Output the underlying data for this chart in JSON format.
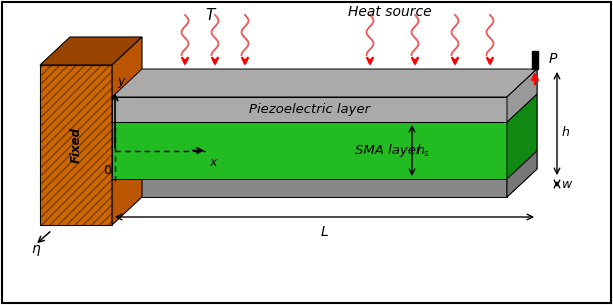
{
  "background_color": "#ffffff",
  "beam_color_gray": "#888888",
  "beam_color_gray_top": "#aaaaaa",
  "beam_color_gray_right": "#777777",
  "beam_bottom_gray": "#999999",
  "sma_color_front": "#22bb22",
  "sma_color_right": "#118811",
  "sma_color_top": "#33cc33",
  "piezo_color_front": "#aaaaaa",
  "piezo_color_top": "#cccccc",
  "piezo_color_right": "#999999",
  "fixed_wall_color": "#cc6600",
  "fixed_wall_dark": "#994400",
  "fixed_wall_side": "#bb5500",
  "heat_source_label": "Heat source",
  "piezo_label": "Piezoelectric layer",
  "sma_label": "SMA layer",
  "fixed_label": "Fixed",
  "label_T": "T",
  "label_P": "P",
  "label_h": "h",
  "label_hs": "h_s",
  "label_w": "w",
  "label_L": "L",
  "label_eta": "η",
  "label_x": "x",
  "label_y": "y",
  "label_0": "0"
}
